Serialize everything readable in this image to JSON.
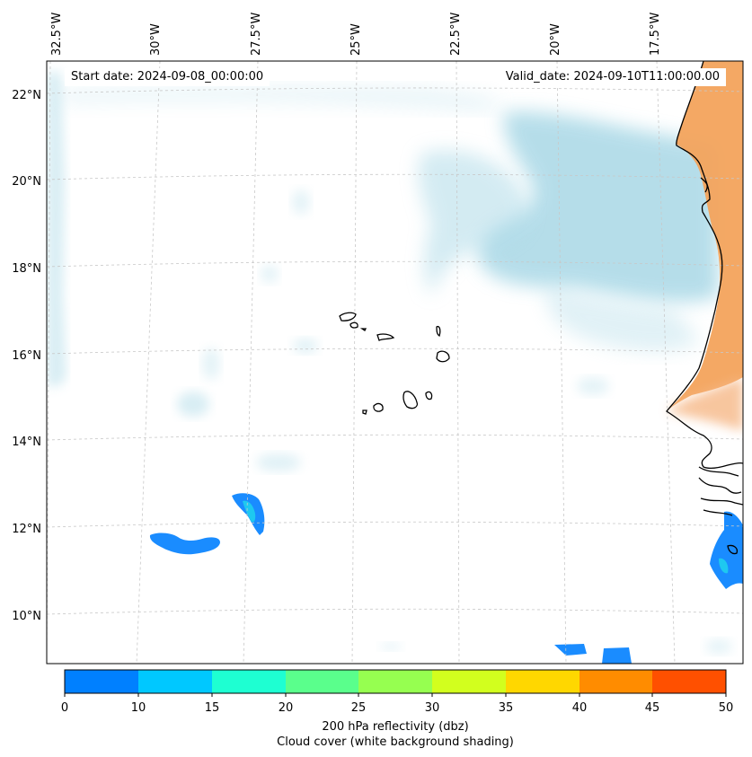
{
  "header": {
    "start_date": "Start date: 2024-09-08_00:00:00",
    "valid_date": "Valid_date: 2024-09-10T11:00:00.00"
  },
  "map": {
    "projection": "Lambert Conformal",
    "lon_labels": [
      "32.5°W",
      "30°W",
      "27.5°W",
      "25°W",
      "22.5°W",
      "20°W",
      "17.5°W"
    ],
    "lat_labels": [
      "22°N",
      "20°N",
      "18°N",
      "16°N",
      "14°N",
      "12°N",
      "10°N"
    ],
    "features": [
      {
        "name": "Cabo Verde islands",
        "type": "coastline"
      },
      {
        "name": "West African coast",
        "type": "coastline"
      },
      {
        "name": "cloud cover",
        "type": "light-blue shading",
        "region": "east, 17-21°N"
      },
      {
        "name": "warm land shading",
        "type": "orange shading",
        "region": "Mauritania/Senegal"
      },
      {
        "name": "reflectivity cells",
        "type": "0-10 dbz blue patches",
        "region": "11-13°N and southeast"
      }
    ]
  },
  "colorbar": {
    "ticks": [
      "0",
      "10",
      "15",
      "20",
      "25",
      "30",
      "35",
      "40",
      "45",
      "50"
    ],
    "colors": [
      "#0080ff",
      "#00c8ff",
      "#1effd2",
      "#5aff8c",
      "#96ff50",
      "#d2ff1e",
      "#ffd700",
      "#ff8c00",
      "#ff5000"
    ],
    "label_line1": "200 hPa reflectivity (dbz)",
    "label_line2": "Cloud cover (white background shading)"
  },
  "colors": {
    "cloud": "#a9d8e6",
    "land_warm": "#f3a35c",
    "reflectivity_low": "#1a8cff",
    "reflectivity_mid": "#1ec8f0",
    "gridline": "#c8c8c8"
  }
}
